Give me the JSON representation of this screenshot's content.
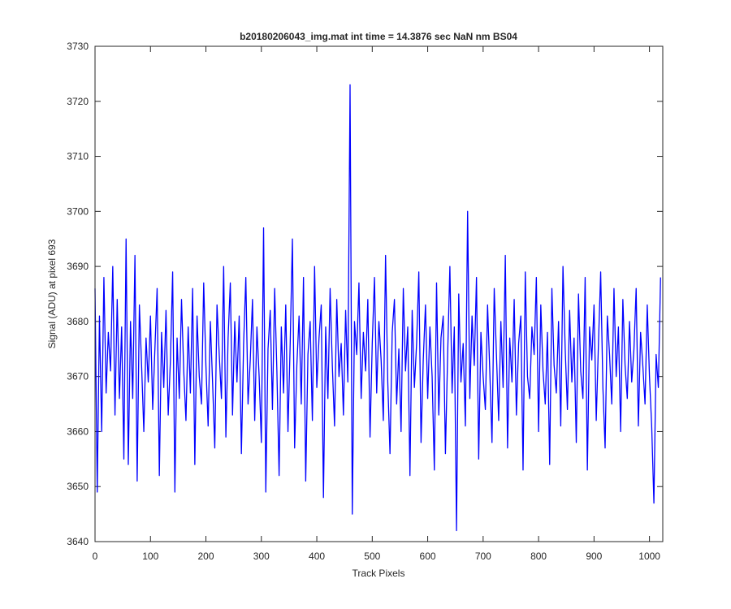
{
  "chart_data": {
    "type": "line",
    "title": "b20180206043_img.mat int time = 14.3876 sec  NaN nm BS04",
    "xlabel": "Track Pixels",
    "ylabel": "Signal (ADU) at pixel 693",
    "xlim": [
      0,
      1024
    ],
    "ylim": [
      3640,
      3730
    ],
    "xticks": [
      0,
      100,
      200,
      300,
      400,
      500,
      600,
      700,
      800,
      900,
      1000
    ],
    "yticks": [
      3640,
      3650,
      3660,
      3670,
      3680,
      3690,
      3700,
      3710,
      3720,
      3730
    ],
    "grid": false,
    "x": [
      0,
      4,
      8,
      12,
      16,
      20,
      24,
      28,
      32,
      36,
      40,
      44,
      48,
      52,
      56,
      60,
      64,
      68,
      72,
      76,
      80,
      84,
      88,
      92,
      96,
      100,
      104,
      108,
      112,
      116,
      120,
      124,
      128,
      132,
      136,
      140,
      144,
      148,
      152,
      156,
      160,
      164,
      168,
      172,
      176,
      180,
      184,
      188,
      192,
      196,
      200,
      204,
      208,
      212,
      216,
      220,
      224,
      228,
      232,
      236,
      240,
      244,
      248,
      252,
      256,
      260,
      264,
      268,
      272,
      276,
      280,
      284,
      288,
      292,
      296,
      300,
      304,
      308,
      312,
      316,
      320,
      324,
      328,
      332,
      336,
      340,
      344,
      348,
      352,
      356,
      360,
      364,
      368,
      372,
      376,
      380,
      384,
      388,
      392,
      396,
      400,
      404,
      408,
      412,
      416,
      420,
      424,
      428,
      432,
      436,
      440,
      444,
      448,
      452,
      456,
      460,
      464,
      468,
      472,
      476,
      480,
      484,
      488,
      492,
      496,
      500,
      504,
      508,
      512,
      516,
      520,
      524,
      528,
      532,
      536,
      540,
      544,
      548,
      552,
      556,
      560,
      564,
      568,
      572,
      576,
      580,
      584,
      588,
      592,
      596,
      600,
      604,
      608,
      612,
      616,
      620,
      624,
      628,
      632,
      636,
      640,
      644,
      648,
      652,
      656,
      660,
      664,
      668,
      672,
      676,
      680,
      684,
      688,
      692,
      696,
      700,
      704,
      708,
      712,
      716,
      720,
      724,
      728,
      732,
      736,
      740,
      744,
      748,
      752,
      756,
      760,
      764,
      768,
      772,
      776,
      780,
      784,
      788,
      792,
      796,
      800,
      804,
      808,
      812,
      816,
      820,
      824,
      828,
      832,
      836,
      840,
      844,
      848,
      852,
      856,
      860,
      864,
      868,
      872,
      876,
      880,
      884,
      888,
      892,
      896,
      900,
      904,
      908,
      912,
      916,
      920,
      924,
      928,
      932,
      936,
      940,
      944,
      948,
      952,
      956,
      960,
      964,
      968,
      972,
      976,
      980,
      984,
      988,
      992,
      996,
      1000,
      1004,
      1008,
      1012,
      1016,
      1020
    ],
    "series": [
      {
        "name": "signal",
        "color": "#0000ff",
        "values": [
          3686,
          3649,
          3681,
          3660,
          3688,
          3667,
          3678,
          3671,
          3690,
          3663,
          3684,
          3666,
          3679,
          3655,
          3695,
          3654,
          3680,
          3666,
          3692,
          3651,
          3683,
          3672,
          3660,
          3677,
          3669,
          3681,
          3664,
          3675,
          3686,
          3652,
          3678,
          3668,
          3682,
          3663,
          3673,
          3689,
          3649,
          3677,
          3666,
          3684,
          3671,
          3662,
          3679,
          3667,
          3686,
          3654,
          3681,
          3670,
          3665,
          3687,
          3672,
          3661,
          3680,
          3669,
          3657,
          3683,
          3674,
          3666,
          3690,
          3659,
          3677,
          3687,
          3663,
          3680,
          3669,
          3681,
          3656,
          3676,
          3688,
          3665,
          3673,
          3684,
          3662,
          3679,
          3670,
          3658,
          3697,
          3649,
          3675,
          3682,
          3664,
          3686,
          3671,
          3652,
          3679,
          3667,
          3683,
          3660,
          3676,
          3695,
          3657,
          3672,
          3681,
          3665,
          3688,
          3651,
          3674,
          3680,
          3662,
          3690,
          3668,
          3677,
          3683,
          3648,
          3679,
          3666,
          3686,
          3672,
          3661,
          3684,
          3670,
          3676,
          3663,
          3682,
          3669,
          3723,
          3645,
          3680,
          3674,
          3687,
          3666,
          3678,
          3671,
          3684,
          3659,
          3676,
          3688,
          3667,
          3680,
          3673,
          3662,
          3692,
          3669,
          3656,
          3678,
          3684,
          3665,
          3675,
          3660,
          3686,
          3671,
          3679,
          3652,
          3682,
          3668,
          3676,
          3689,
          3658,
          3673,
          3683,
          3666,
          3679,
          3670,
          3653,
          3687,
          3663,
          3677,
          3681,
          3656,
          3674,
          3690,
          3667,
          3679,
          3642,
          3685,
          3669,
          3676,
          3661,
          3700,
          3666,
          3681,
          3672,
          3688,
          3655,
          3678,
          3670,
          3664,
          3683,
          3671,
          3658,
          3686,
          3674,
          3662,
          3680,
          3668,
          3692,
          3657,
          3677,
          3669,
          3684,
          3663,
          3676,
          3681,
          3653,
          3689,
          3670,
          3666,
          3679,
          3674,
          3688,
          3660,
          3683,
          3671,
          3665,
          3678,
          3654,
          3686,
          3672,
          3667,
          3680,
          3661,
          3690,
          3675,
          3664,
          3682,
          3669,
          3677,
          3658,
          3685,
          3671,
          3666,
          3688,
          3653,
          3679,
          3673,
          3683,
          3662,
          3676,
          3689,
          3668,
          3657,
          3681,
          3674,
          3665,
          3686,
          3670,
          3679,
          3660,
          3684,
          3672,
          3666,
          3680,
          3669,
          3675,
          3686,
          3661,
          3678,
          3672,
          3665,
          3683,
          3670,
          3661,
          3647,
          3674,
          3668,
          3688
        ]
      }
    ]
  }
}
